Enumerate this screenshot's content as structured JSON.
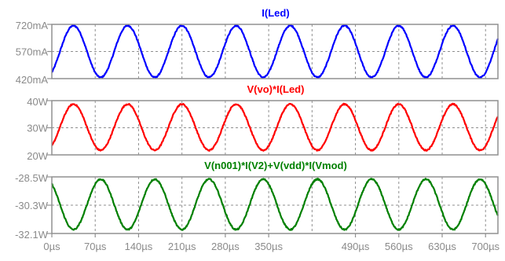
{
  "chart_data": {
    "type": "line",
    "x_axis": {
      "unit": "µs",
      "range": [
        0,
        720
      ],
      "tick_values": [
        0,
        70,
        140,
        210,
        280,
        350,
        490,
        560,
        630,
        700
      ],
      "tick_labels": [
        "0µs",
        "70µs",
        "140µs",
        "210µs",
        "280µs",
        "350µs",
        "490µs",
        "560µs",
        "630µs",
        "700µs"
      ],
      "grid_values": [
        0,
        70,
        140,
        210,
        280,
        350,
        420,
        490,
        560,
        630,
        700
      ]
    },
    "panels": [
      {
        "title": "I(Led)",
        "color": "#0000ff",
        "y_range": [
          420,
          720
        ],
        "y_ticks": [
          {
            "value": 720,
            "label": "720mA"
          },
          {
            "value": 570,
            "label": "570mA"
          },
          {
            "value": 420,
            "label": "420mA"
          }
        ],
        "series": {
          "name": "I(Led)",
          "mean": 570,
          "amplitude": 143,
          "period": 87.5,
          "start_phase": "max",
          "unit": "mA"
        }
      },
      {
        "title": "V(vo)*I(Led)",
        "color": "#ff0000",
        "y_range": [
          20,
          40
        ],
        "y_ticks": [
          {
            "value": 40,
            "label": "40W"
          },
          {
            "value": 30,
            "label": "30W"
          },
          {
            "value": 20,
            "label": "20W"
          }
        ],
        "series": {
          "name": "V(vo)*I(Led)",
          "mean": 30.2,
          "amplitude": 8.5,
          "period": 87.5,
          "start_phase": "max",
          "unit": "W"
        }
      },
      {
        "title": "V(n001)*I(V2)+V(vdd)*I(Vmod)",
        "color": "#008000",
        "y_range": [
          -32.1,
          -28.5
        ],
        "y_ticks": [
          {
            "value": -28.5,
            "label": "-28.5W"
          },
          {
            "value": -30.3,
            "label": "-30.3W"
          },
          {
            "value": -32.1,
            "label": "-32.1W"
          }
        ],
        "series": {
          "name": "V(n001)*I(V2)+V(vdd)*I(Vmod)",
          "mean": -30.25,
          "amplitude": 1.6,
          "period": 87.5,
          "start_phase": "min",
          "unit": "W"
        }
      }
    ]
  }
}
